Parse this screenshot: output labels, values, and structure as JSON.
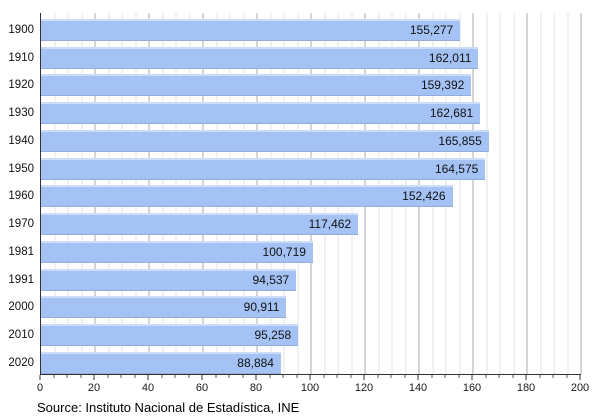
{
  "chart_data": {
    "type": "bar",
    "orientation": "horizontal",
    "title": "",
    "xlabel": "",
    "ylabel": "",
    "categories": [
      "1900",
      "1910",
      "1920",
      "1930",
      "1940",
      "1950",
      "1960",
      "1970",
      "1981",
      "1991",
      "2000",
      "2010",
      "2020"
    ],
    "values": [
      155277,
      162011,
      159392,
      162681,
      165855,
      164575,
      152426,
      117462,
      100719,
      94537,
      90911,
      95258,
      88884
    ],
    "values_display": [
      "155,277",
      "162,011",
      "159,392",
      "162,681",
      "165,855",
      "164,575",
      "152,426",
      "117,462",
      "100,719",
      "94,537",
      "90,911",
      "95,258",
      "88,884"
    ],
    "x_axis": {
      "min": 0,
      "max": 200,
      "axis_value_divisor": 1000,
      "major_tick_step": 20,
      "minor_tick_step": 5,
      "tick_labels": [
        "0",
        "20",
        "40",
        "60",
        "80",
        "100",
        "120",
        "140",
        "160",
        "180",
        "200"
      ]
    },
    "grid": true,
    "legend": "none",
    "source": "Source: Instituto Nacional de Estadística, INE",
    "colors": {
      "bar": "#a4c2f4",
      "bar_top_highlight": "#cddcf8",
      "bar_bottom_edge": "#94acdd",
      "major_grid": "#ababab",
      "minor_grid": "#e3e3e3",
      "axis": "#333333",
      "text": "#111111"
    }
  }
}
